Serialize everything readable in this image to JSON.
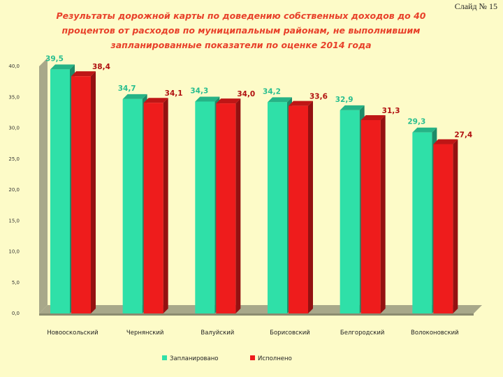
{
  "slide_label": "Слайд № 15",
  "chart_data": {
    "type": "bar",
    "title": "Результаты дорожной карты по доведению собственных доходов до 40 процентов от расходов по муниципальным районам, не выполнившим запланированные показатели по оценке 2014 года",
    "categories": [
      "Новооскольский",
      "Чернянский",
      "Валуйский",
      "Борисовский",
      "Белгородский",
      "Волоконовский"
    ],
    "series": [
      {
        "name": "Запланировано",
        "color": "#2fe0a8",
        "values": [
          39.5,
          34.7,
          34.3,
          34.2,
          32.9,
          29.3
        ],
        "labels": [
          "39,5",
          "34,7",
          "34,3",
          "34,2",
          "32,9",
          "29,3"
        ]
      },
      {
        "name": "Исполнено",
        "color": "#ee1c1c",
        "values": [
          38.4,
          34.1,
          34.0,
          33.6,
          31.3,
          27.4
        ],
        "labels": [
          "38,4",
          "34,1",
          "34,0",
          "33,6",
          "31,3",
          "27,4"
        ]
      }
    ],
    "yticks": [
      "0,0",
      "5,0",
      "10,0",
      "15,0",
      "20,0",
      "25,0",
      "30,0",
      "35,0",
      "40,0"
    ],
    "ylim": [
      0,
      40
    ],
    "legend_position": "bottom"
  }
}
